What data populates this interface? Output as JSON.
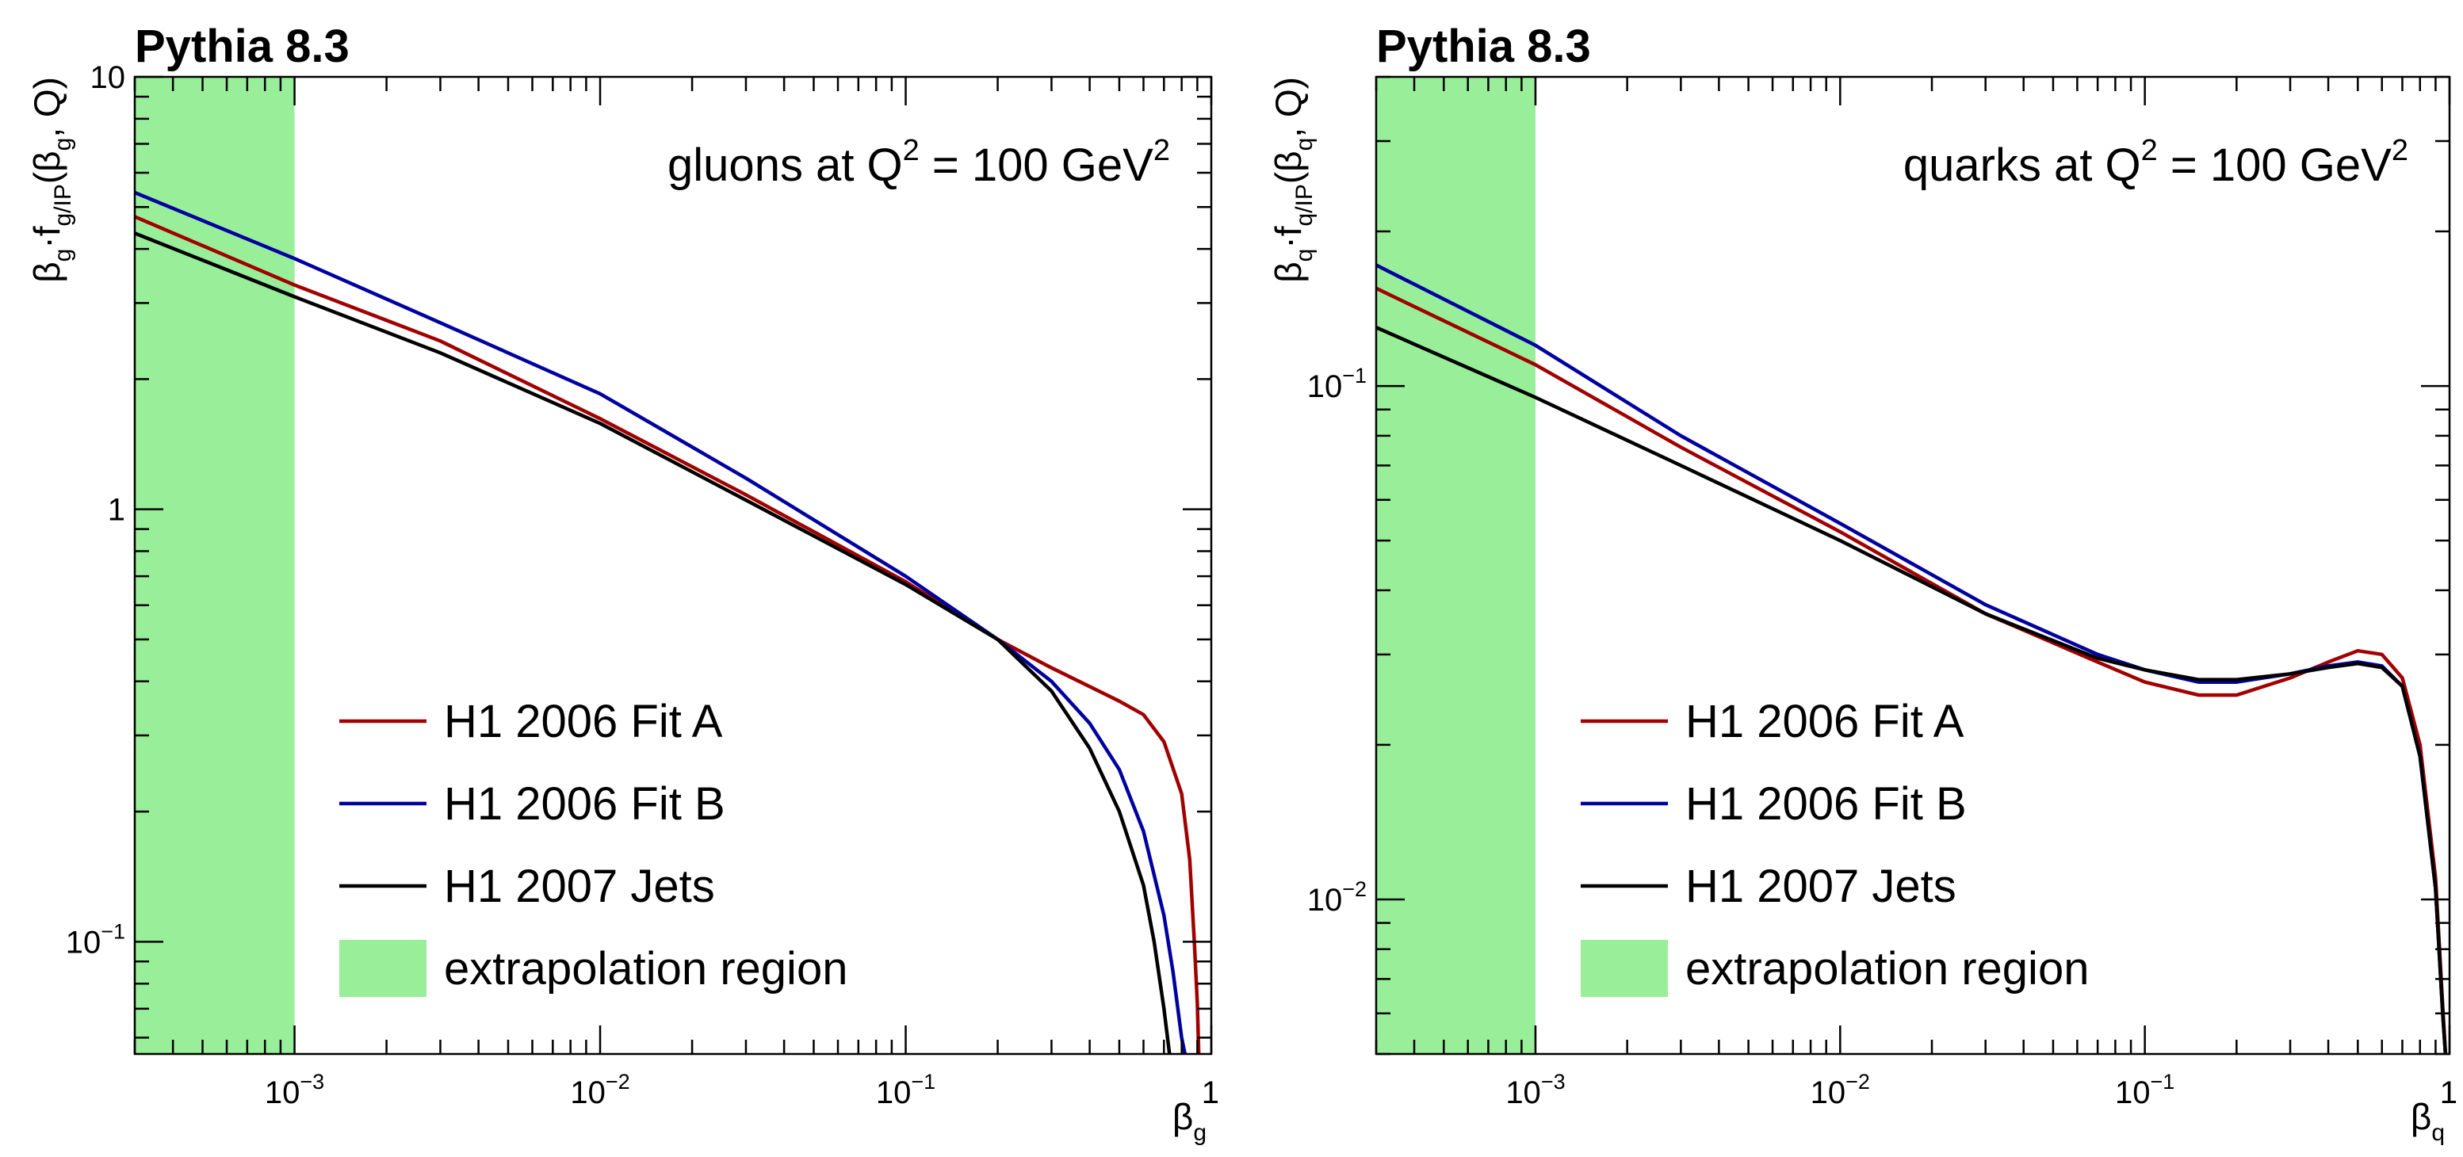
{
  "chart_data": [
    {
      "type": "line",
      "title": "Pythia 8.3",
      "annotation": {
        "main": "gluons at Q",
        "sup1": "2",
        "mid": " = 100 GeV",
        "sup2": "2"
      },
      "xlabel": {
        "main": "β",
        "sub": "g"
      },
      "ylabel": {
        "pre": "β",
        "pre_sub": "g",
        "mid": "·f",
        "f_sub": "g/IP",
        "arg_open": "(β",
        "arg_sub": "g",
        "arg_close": ", Q)"
      },
      "xscale": "log",
      "yscale": "log",
      "xlim": [
        0.0003,
        1.0
      ],
      "ylim": [
        0.055,
        10
      ],
      "x_ticks": [
        {
          "v": 0.001,
          "base": "10",
          "exp": "−3"
        },
        {
          "v": 0.01,
          "base": "10",
          "exp": "−2"
        },
        {
          "v": 0.1,
          "base": "10",
          "exp": "−1"
        },
        {
          "v": 1,
          "base": "1",
          "exp": ""
        }
      ],
      "y_ticks": [
        {
          "v": 0.1,
          "base": "10",
          "exp": "−1"
        },
        {
          "v": 1,
          "base": "1",
          "exp": ""
        },
        {
          "v": 10,
          "base": "10",
          "exp": ""
        }
      ],
      "extrapolation_region": [
        0.0003,
        0.001
      ],
      "series": [
        {
          "name": "H1 2006 Fit A",
          "color": "#a00000",
          "points": [
            [
              0.0003,
              4.75
            ],
            [
              0.001,
              3.3
            ],
            [
              0.003,
              2.45
            ],
            [
              0.01,
              1.62
            ],
            [
              0.03,
              1.08
            ],
            [
              0.1,
              0.68
            ],
            [
              0.2,
              0.5
            ],
            [
              0.3,
              0.43
            ],
            [
              0.5,
              0.36
            ],
            [
              0.6,
              0.335
            ],
            [
              0.7,
              0.29
            ],
            [
              0.8,
              0.22
            ],
            [
              0.85,
              0.155
            ],
            [
              0.88,
              0.1
            ],
            [
              0.9,
              0.072
            ],
            [
              0.91,
              0.055
            ]
          ]
        },
        {
          "name": "H1 2006 Fit B",
          "color": "#0000a0",
          "points": [
            [
              0.0003,
              5.4
            ],
            [
              0.001,
              3.8
            ],
            [
              0.003,
              2.7
            ],
            [
              0.01,
              1.85
            ],
            [
              0.03,
              1.18
            ],
            [
              0.1,
              0.7
            ],
            [
              0.2,
              0.5
            ],
            [
              0.3,
              0.4
            ],
            [
              0.4,
              0.32
            ],
            [
              0.5,
              0.25
            ],
            [
              0.6,
              0.18
            ],
            [
              0.7,
              0.115
            ],
            [
              0.75,
              0.085
            ],
            [
              0.8,
              0.06
            ],
            [
              0.82,
              0.055
            ]
          ]
        },
        {
          "name": "H1 2007 Jets",
          "color": "#000000",
          "points": [
            [
              0.0003,
              4.35
            ],
            [
              0.001,
              3.1
            ],
            [
              0.003,
              2.3
            ],
            [
              0.01,
              1.58
            ],
            [
              0.03,
              1.05
            ],
            [
              0.1,
              0.67
            ],
            [
              0.2,
              0.5
            ],
            [
              0.3,
              0.38
            ],
            [
              0.4,
              0.28
            ],
            [
              0.5,
              0.2
            ],
            [
              0.6,
              0.135
            ],
            [
              0.65,
              0.1
            ],
            [
              0.7,
              0.07
            ],
            [
              0.73,
              0.055
            ]
          ]
        }
      ],
      "legend": {
        "position": "bottom-left",
        "extra": "extrapolation region"
      }
    },
    {
      "type": "line",
      "title": "Pythia 8.3",
      "annotation": {
        "main": "quarks at Q",
        "sup1": "2",
        "mid": " = 100 GeV",
        "sup2": "2"
      },
      "xlabel": {
        "main": "β",
        "sub": "q"
      },
      "ylabel": {
        "pre": "β",
        "pre_sub": "q",
        "mid": "·f",
        "f_sub": "q/IP",
        "arg_open": "(β",
        "arg_sub": "q",
        "arg_close": ", Q)"
      },
      "xscale": "log",
      "yscale": "log",
      "xlim": [
        0.0003,
        1.0
      ],
      "ylim": [
        0.005,
        0.4
      ],
      "x_ticks": [
        {
          "v": 0.001,
          "base": "10",
          "exp": "−3"
        },
        {
          "v": 0.01,
          "base": "10",
          "exp": "−2"
        },
        {
          "v": 0.1,
          "base": "10",
          "exp": "−1"
        },
        {
          "v": 1,
          "base": "1",
          "exp": ""
        }
      ],
      "y_ticks": [
        {
          "v": 0.01,
          "base": "10",
          "exp": "−2"
        },
        {
          "v": 0.1,
          "base": "10",
          "exp": "−1"
        }
      ],
      "extrapolation_region": [
        0.0003,
        0.001
      ],
      "series": [
        {
          "name": "H1 2006 Fit A",
          "color": "#a00000",
          "points": [
            [
              0.0003,
              0.155
            ],
            [
              0.001,
              0.11
            ],
            [
              0.003,
              0.076
            ],
            [
              0.01,
              0.052
            ],
            [
              0.03,
              0.036
            ],
            [
              0.07,
              0.029
            ],
            [
              0.1,
              0.0265
            ],
            [
              0.15,
              0.025
            ],
            [
              0.2,
              0.025
            ],
            [
              0.3,
              0.027
            ],
            [
              0.4,
              0.029
            ],
            [
              0.5,
              0.0305
            ],
            [
              0.6,
              0.03
            ],
            [
              0.7,
              0.027
            ],
            [
              0.8,
              0.02
            ],
            [
              0.9,
              0.011
            ],
            [
              0.95,
              0.0062
            ],
            [
              0.97,
              0.005
            ]
          ]
        },
        {
          "name": "H1 2006 Fit B",
          "color": "#0000a0",
          "points": [
            [
              0.0003,
              0.172
            ],
            [
              0.001,
              0.12
            ],
            [
              0.003,
              0.08
            ],
            [
              0.01,
              0.054
            ],
            [
              0.03,
              0.0375
            ],
            [
              0.07,
              0.03
            ],
            [
              0.1,
              0.028
            ],
            [
              0.15,
              0.0265
            ],
            [
              0.2,
              0.0265
            ],
            [
              0.3,
              0.0275
            ],
            [
              0.4,
              0.0285
            ],
            [
              0.5,
              0.029
            ],
            [
              0.6,
              0.0285
            ],
            [
              0.7,
              0.026
            ],
            [
              0.8,
              0.019
            ],
            [
              0.9,
              0.0105
            ],
            [
              0.95,
              0.006
            ],
            [
              0.97,
              0.005
            ]
          ]
        },
        {
          "name": "H1 2007 Jets",
          "color": "#000000",
          "points": [
            [
              0.0003,
              0.13
            ],
            [
              0.001,
              0.095
            ],
            [
              0.003,
              0.07
            ],
            [
              0.01,
              0.05
            ],
            [
              0.03,
              0.036
            ],
            [
              0.07,
              0.0295
            ],
            [
              0.1,
              0.028
            ],
            [
              0.15,
              0.0268
            ],
            [
              0.2,
              0.0268
            ],
            [
              0.3,
              0.0275
            ],
            [
              0.4,
              0.0283
            ],
            [
              0.5,
              0.0288
            ],
            [
              0.6,
              0.0283
            ],
            [
              0.7,
              0.026
            ],
            [
              0.8,
              0.019
            ],
            [
              0.9,
              0.0105
            ],
            [
              0.95,
              0.006
            ],
            [
              0.97,
              0.005
            ]
          ]
        }
      ],
      "legend": {
        "position": "bottom-left",
        "extra": "extrapolation region"
      }
    }
  ]
}
